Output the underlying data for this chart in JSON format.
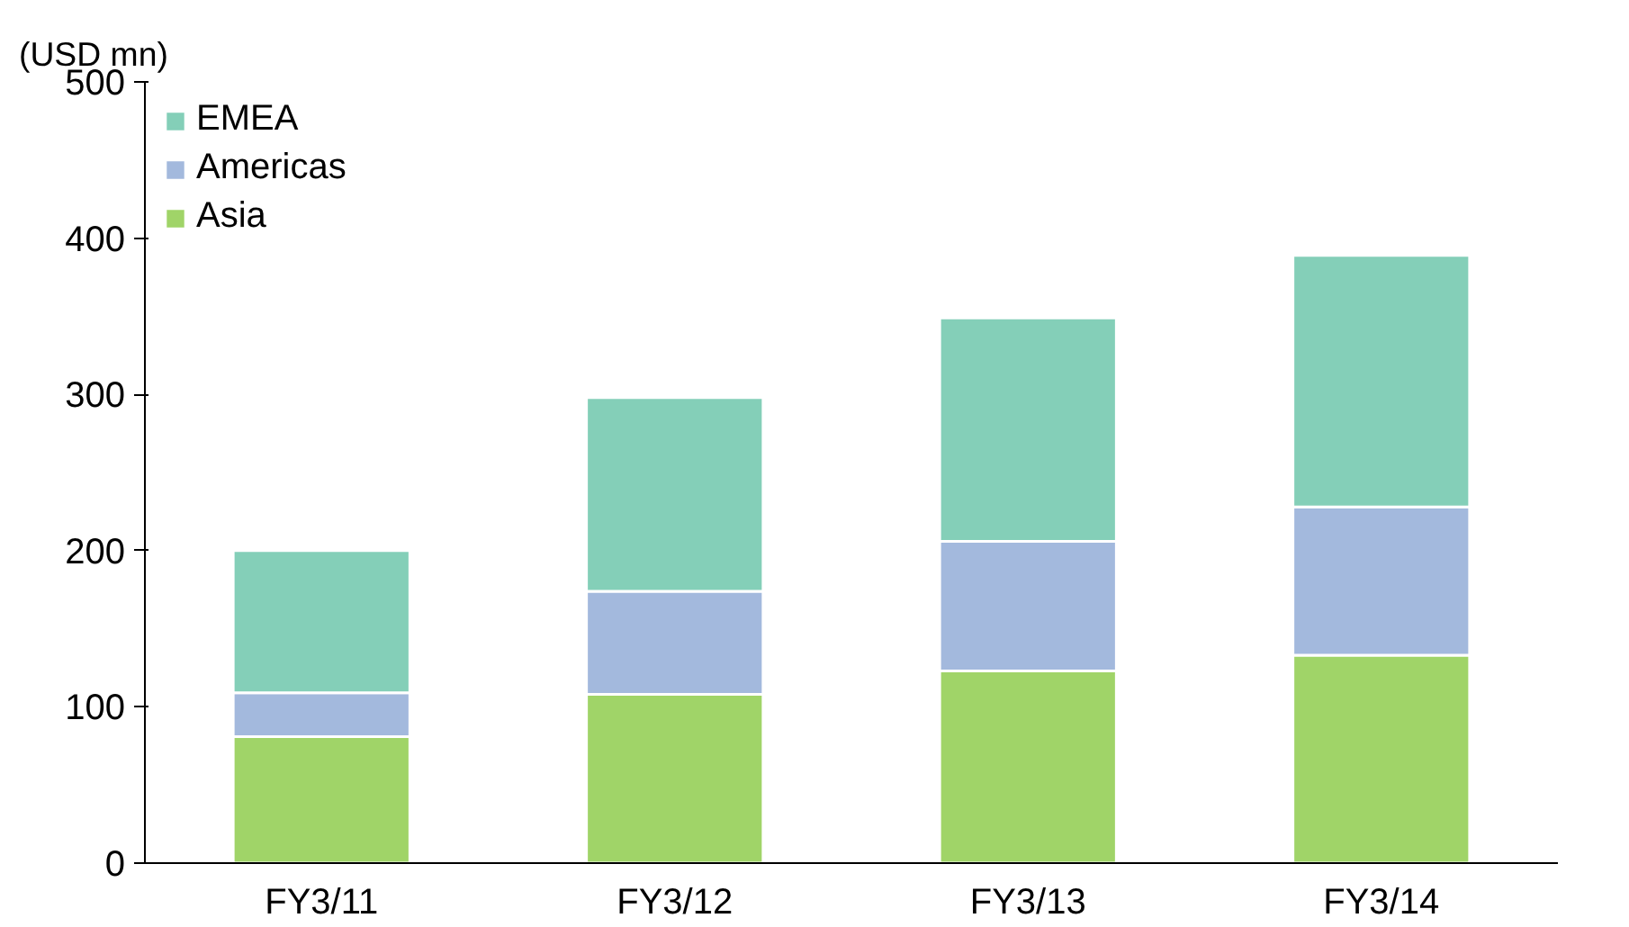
{
  "chart_data": {
    "type": "bar",
    "stacked": true,
    "ylabel": "(USD mn)",
    "categories": [
      "FY3/11",
      "FY3/12",
      "FY3/13",
      "FY3/14"
    ],
    "series": [
      {
        "name": "Asia",
        "color": "#a0d468",
        "values": [
          81,
          108,
          123,
          133
        ]
      },
      {
        "name": "Americas",
        "color": "#a3b9dd",
        "values": [
          28,
          66,
          83,
          95
        ]
      },
      {
        "name": "EMEA",
        "color": "#84cfb8",
        "values": [
          91,
          124,
          143,
          161
        ]
      }
    ],
    "ylim": [
      0,
      500
    ],
    "yticks": [
      0,
      100,
      200,
      300,
      400,
      500
    ],
    "grid": false,
    "legend": "top left"
  }
}
